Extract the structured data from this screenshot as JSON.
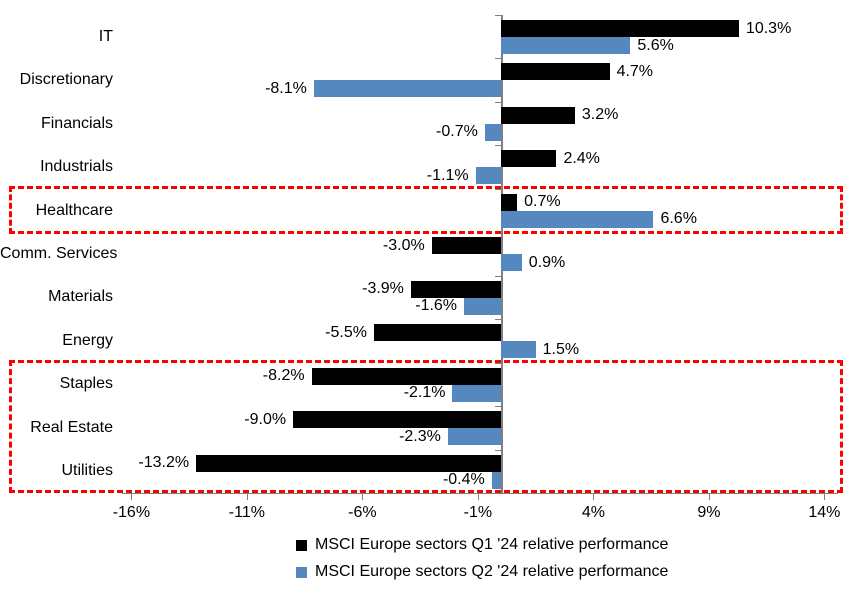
{
  "chart_data": {
    "type": "bar",
    "orientation": "horizontal",
    "title": "",
    "categories": [
      "IT",
      "Discretionary",
      "Financials",
      "Industrials",
      "Healthcare",
      "Comm. Services",
      "Materials",
      "Energy",
      "Staples",
      "Real Estate",
      "Utilities"
    ],
    "series": [
      {
        "name": "MSCI Europe sectors Q1 '24 relative performance",
        "color": "#000000",
        "values": [
          10.3,
          4.7,
          3.2,
          2.4,
          0.7,
          -3.0,
          -3.9,
          -5.5,
          -8.2,
          -9.0,
          -13.2
        ],
        "labels": [
          "10.3%",
          "4.7%",
          "3.2%",
          "2.4%",
          "0.7%",
          "-3.0%",
          "-3.9%",
          "-5.5%",
          "-8.2%",
          "-9.0%",
          "-13.2%"
        ]
      },
      {
        "name": "MSCI Europe sectors Q2 '24 relative performance",
        "color": "#5588BE",
        "values": [
          5.6,
          -8.1,
          -0.7,
          -1.1,
          6.6,
          0.9,
          -1.6,
          1.5,
          -2.1,
          -2.3,
          -0.4
        ],
        "labels": [
          "5.6%",
          "-8.1%",
          "-0.7%",
          "-1.1%",
          "6.6%",
          "0.9%",
          "-1.6%",
          "1.5%",
          "-2.1%",
          "-2.3%",
          "-0.4%"
        ]
      }
    ],
    "x_tick_labels": [
      "-16%",
      "-11%",
      "-6%",
      "-1%",
      "4%",
      "9%",
      "14%"
    ],
    "x_tick_values": [
      -16,
      -11,
      -6,
      -1,
      4,
      9,
      14
    ],
    "xlim": [
      -16,
      14
    ],
    "xlabel": "",
    "ylabel": "",
    "grid": false,
    "legend_position": "bottom",
    "value_labels_shown": true,
    "axis_color": "#808080",
    "highlight_boxes": [
      {
        "categories": [
          "Healthcare"
        ],
        "border_color": "#FF0000",
        "border_style": "dashed"
      },
      {
        "categories": [
          "Staples",
          "Real Estate",
          "Utilities"
        ],
        "border_color": "#FF0000",
        "border_style": "dashed"
      }
    ]
  }
}
